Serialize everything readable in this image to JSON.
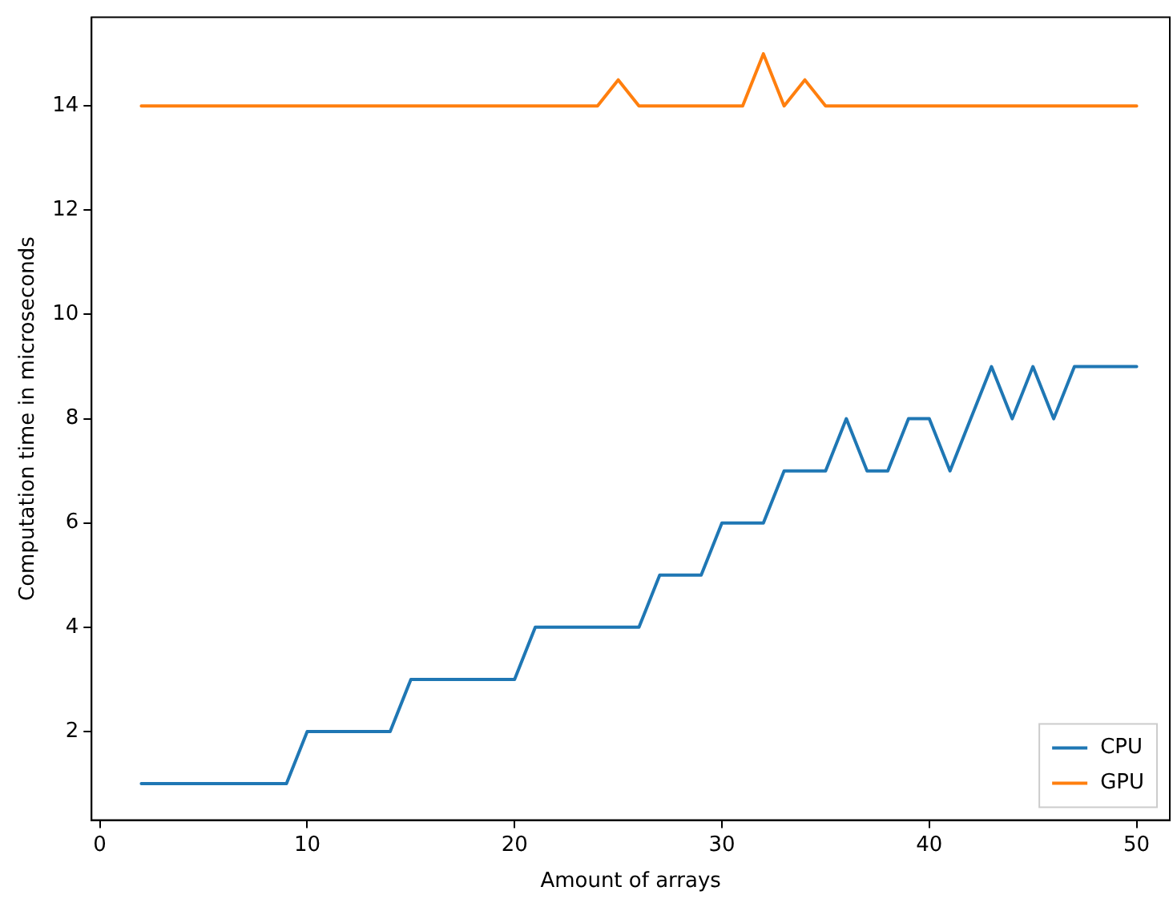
{
  "chart_data": {
    "type": "line",
    "xlabel": "Amount of arrays",
    "ylabel": "Computation time in microseconds",
    "x": [
      2,
      3,
      4,
      5,
      6,
      7,
      8,
      9,
      10,
      11,
      12,
      13,
      14,
      15,
      16,
      17,
      18,
      19,
      20,
      21,
      22,
      23,
      24,
      25,
      26,
      27,
      28,
      29,
      30,
      31,
      32,
      33,
      34,
      35,
      36,
      37,
      38,
      39,
      40,
      41,
      42,
      43,
      44,
      45,
      46,
      47,
      48,
      49,
      50
    ],
    "series": [
      {
        "name": "CPU",
        "color": "#1f77b4",
        "values": [
          1,
          1,
          1,
          1,
          1,
          1,
          1,
          1,
          2,
          2,
          2,
          2,
          2,
          3,
          3,
          3,
          3,
          3,
          3,
          4,
          4,
          4,
          4,
          4,
          4,
          5,
          5,
          5,
          6,
          6,
          6,
          7,
          7,
          7,
          8,
          7,
          7,
          8,
          8,
          7,
          8,
          9,
          8,
          9,
          8,
          9,
          9,
          9,
          9
        ]
      },
      {
        "name": "GPU",
        "color": "#ff7f0e",
        "values": [
          14,
          14,
          14,
          14,
          14,
          14,
          14,
          14,
          14,
          14,
          14,
          14,
          14,
          14,
          14,
          14,
          14,
          14,
          14,
          14,
          14,
          14,
          14,
          14.5,
          14,
          14,
          14,
          14,
          14,
          14,
          15,
          14,
          14.5,
          14,
          14,
          14,
          14,
          14,
          14,
          14,
          14,
          14,
          14,
          14,
          14,
          14,
          14,
          14,
          14
        ]
      }
    ],
    "xlim": [
      -0.4,
      51.6
    ],
    "ylim": [
      0.3,
      15.7
    ],
    "xticks": [
      0,
      10,
      20,
      30,
      40,
      50
    ],
    "yticks": [
      2,
      4,
      6,
      8,
      10,
      12,
      14
    ],
    "grid": false,
    "legend": "lower right",
    "marker": "none",
    "line_style": "solid"
  }
}
